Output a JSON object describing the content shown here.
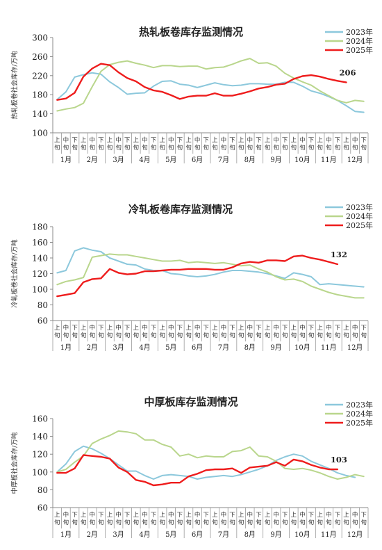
{
  "periods": [
    "上旬",
    "中旬",
    "下旬"
  ],
  "months": [
    "1月",
    "2月",
    "3月",
    "4月",
    "5月",
    "6月",
    "7月",
    "8月",
    "9月",
    "10月",
    "11月",
    "12月"
  ],
  "colors": {
    "2023年": "#8cc8dc",
    "2024年": "#b9d68c",
    "2025年": "#ee1c1c"
  },
  "chart_data": [
    {
      "type": "line",
      "title": "热轧板卷库存监测情况",
      "ylabel": "热轧板卷社会库存/万吨",
      "ylim": [
        100,
        300
      ],
      "yticks": [
        100,
        140,
        180,
        220,
        260,
        300
      ],
      "grid": false,
      "legend": "top-right",
      "last_label": "206",
      "series": [
        {
          "name": "2023年",
          "values": [
            170,
            186,
            217,
            222,
            226,
            223,
            207,
            195,
            181,
            183,
            184,
            198,
            208,
            209,
            202,
            200,
            195,
            200,
            205,
            201,
            199,
            200,
            203,
            203,
            202,
            202,
            206,
            206,
            198,
            188,
            183,
            176,
            168,
            157,
            145,
            143
          ]
        },
        {
          "name": "2024年",
          "values": [
            146,
            150,
            153,
            162,
            197,
            229,
            243,
            248,
            251,
            246,
            242,
            237,
            241,
            241,
            239,
            240,
            240,
            234,
            237,
            238,
            244,
            251,
            256,
            246,
            247,
            240,
            225,
            215,
            207,
            200,
            188,
            178,
            168,
            163,
            168,
            166
          ]
        },
        {
          "name": "2025年",
          "values": [
            169,
            172,
            184,
            218,
            235,
            245,
            242,
            227,
            215,
            208,
            196,
            189,
            186,
            179,
            171,
            176,
            178,
            178,
            183,
            178,
            178,
            182,
            187,
            193,
            196,
            201,
            203,
            213,
            219,
            221,
            218,
            213,
            209,
            206
          ]
        }
      ]
    },
    {
      "type": "line",
      "title": "冷轧板卷库存监测情况",
      "ylabel": "冷轧板卷社会库存/万吨",
      "ylim": [
        60,
        180
      ],
      "yticks": [
        60,
        80,
        100,
        120,
        140,
        160,
        180
      ],
      "grid": false,
      "legend": "top-right",
      "last_label": "132",
      "series": [
        {
          "name": "2023年",
          "values": [
            121,
            124,
            149,
            153,
            150,
            148,
            140,
            136,
            132,
            131,
            126,
            124,
            124,
            120,
            119,
            117,
            116,
            117,
            119,
            122,
            124,
            124,
            123,
            122,
            120,
            117,
            114,
            121,
            119,
            116,
            106,
            107,
            106,
            105,
            104,
            103
          ]
        },
        {
          "name": "2024年",
          "values": [
            106,
            110,
            112,
            115,
            141,
            143,
            145,
            144,
            144,
            142,
            140,
            138,
            136,
            136,
            137,
            134,
            135,
            134,
            133,
            134,
            132,
            130,
            131,
            126,
            122,
            116,
            112,
            113,
            110,
            104,
            100,
            96,
            93,
            91,
            89,
            89
          ]
        },
        {
          "name": "2025年",
          "values": [
            91,
            93,
            95,
            109,
            113,
            114,
            126,
            121,
            119,
            120,
            123,
            123,
            124,
            125,
            125,
            126,
            126,
            126,
            125,
            125,
            128,
            133,
            135,
            134,
            137,
            137,
            136,
            142,
            143,
            140,
            138,
            135,
            132
          ]
        }
      ]
    },
    {
      "type": "line",
      "title": "中厚板库存监测情况",
      "ylabel": "中厚板社会库存/万吨",
      "ylim": [
        60,
        160
      ],
      "yticks": [
        60,
        80,
        100,
        120,
        140,
        160
      ],
      "grid": false,
      "legend": "top-right",
      "last_label": "103",
      "series": [
        {
          "name": "2023年",
          "values": [
            100,
            109,
            123,
            129,
            126,
            121,
            115,
            108,
            101,
            101,
            96,
            92,
            96,
            97,
            96,
            95,
            92,
            94,
            95,
            96,
            95,
            97,
            100,
            103,
            107,
            113,
            117,
            120,
            118,
            112,
            108,
            104,
            99,
            96,
            94
          ]
        },
        {
          "name": "2024年",
          "values": [
            100,
            103,
            111,
            118,
            132,
            137,
            141,
            146,
            145,
            143,
            136,
            136,
            131,
            128,
            118,
            120,
            116,
            118,
            117,
            117,
            123,
            124,
            128,
            118,
            117,
            112,
            104,
            103,
            104,
            102,
            99,
            95,
            92,
            94,
            97,
            95
          ]
        },
        {
          "name": "2025年",
          "values": [
            99,
            99,
            104,
            119,
            118,
            117,
            115,
            105,
            100,
            91,
            89,
            85,
            86,
            88,
            88,
            95,
            98,
            102,
            103,
            103,
            104,
            99,
            105,
            106,
            107,
            111,
            107,
            114,
            112,
            108,
            105,
            103,
            103
          ]
        }
      ]
    }
  ]
}
